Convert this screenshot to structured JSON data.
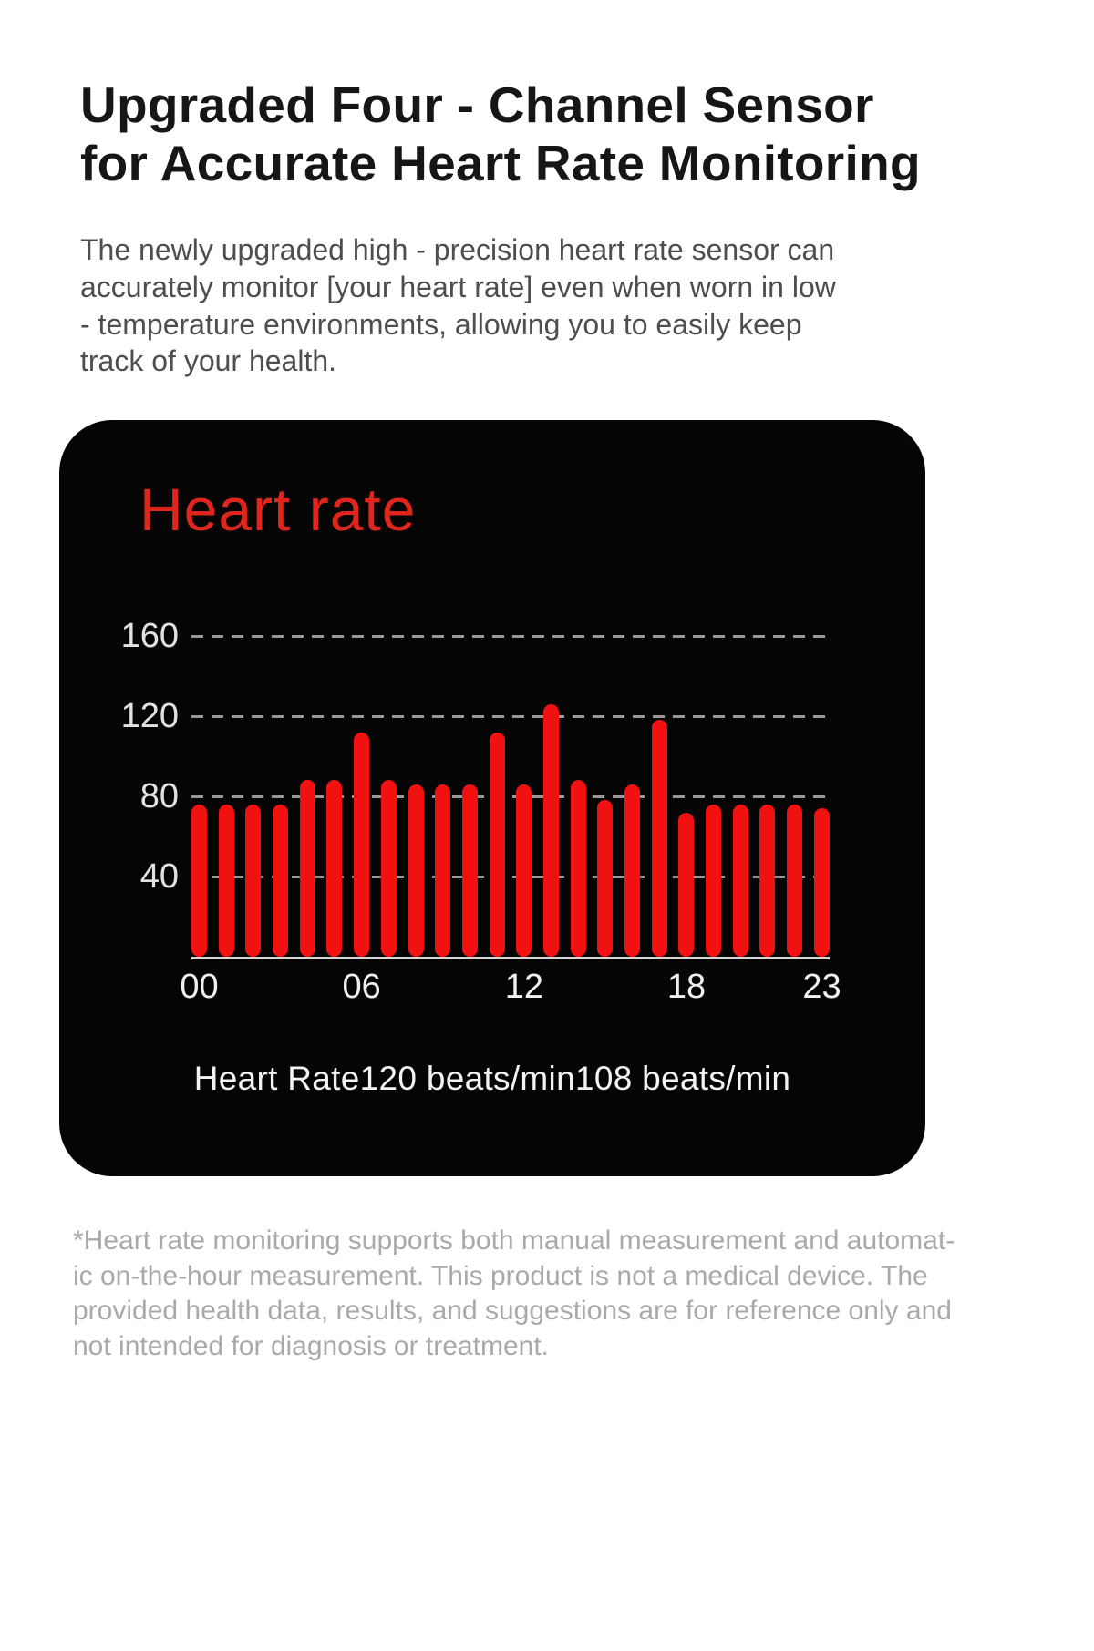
{
  "header": {
    "title": "Upgraded Four - Channel Sensor\nfor Accurate Heart Rate Monitoring",
    "description": "The newly upgraded high - precision heart rate sensor can\naccurately monitor [your heart rate] even when worn in low\n - temperature environments, allowing you to easily keep\ntrack of your health."
  },
  "device_panel": {
    "title": "Heart rate",
    "caption": "Heart Rate120 beats/min108 beats/min",
    "colors": {
      "panel_background": "#050505",
      "title_red": "#e0251c",
      "bar_red": "#f21111",
      "axis_text": "#e2e2e2",
      "grid_gray": "#989898",
      "baseline_gray": "#d6d6d6",
      "caption_text": "#f3f3f3"
    }
  },
  "footnote": {
    "text": "*Heart rate monitoring supports both manual measurement and automat-\nic on-the-hour measurement. This product is not a medical device. The\nprovided health data, results, and suggestions are for reference only and\nnot intended for diagnosis or treatment."
  },
  "chart_data": {
    "type": "bar",
    "title": "Heart rate",
    "unit": "beats/min",
    "categories": [
      "00",
      "01",
      "02",
      "03",
      "04",
      "05",
      "06",
      "07",
      "08",
      "09",
      "10",
      "11",
      "12",
      "13",
      "14",
      "15",
      "16",
      "17",
      "18",
      "19",
      "20",
      "21",
      "22",
      "23"
    ],
    "values": [
      76,
      76,
      76,
      76,
      88,
      88,
      112,
      88,
      86,
      86,
      86,
      112,
      86,
      126,
      88,
      78,
      86,
      118,
      72,
      76,
      76,
      76,
      76,
      74
    ],
    "y_ticks": [
      40,
      80,
      120,
      160
    ],
    "x_tick_hours": [
      0,
      6,
      12,
      18,
      23
    ],
    "x_tick_labels": [
      "00",
      "06",
      "12",
      "18",
      "23"
    ],
    "ylim": [
      0,
      178
    ],
    "grid": "dashed-horizontal",
    "legend": "none",
    "bar_color": "#f21111"
  }
}
